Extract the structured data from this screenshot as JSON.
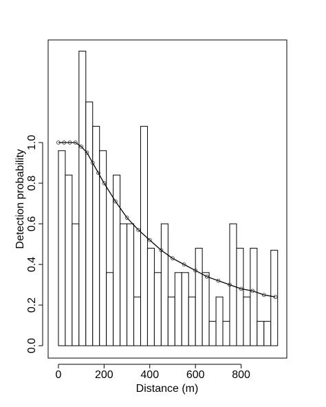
{
  "chart_data": {
    "type": "histogram",
    "xlabel": "Distance (m)",
    "ylabel": "Detection probability",
    "bins": [
      0,
      30,
      60,
      90,
      120,
      150,
      180,
      210,
      240,
      270,
      300,
      330,
      360,
      390,
      420,
      450,
      480,
      510,
      540,
      570,
      600,
      630,
      660,
      690,
      720,
      750,
      780,
      810,
      840,
      870,
      900,
      930,
      960
    ],
    "values": [
      0.96,
      0.84,
      0.6,
      1.45,
      1.2,
      1.08,
      0.96,
      0.36,
      0.84,
      0.6,
      0.6,
      0.24,
      1.08,
      0.48,
      0.36,
      0.6,
      0.24,
      0.36,
      0.36,
      0.24,
      0.48,
      0.36,
      0.12,
      0.24,
      0.12,
      0.6,
      0.48,
      0.24,
      0.48,
      0.12,
      0.12,
      0.47
    ],
    "curve": {
      "type": "line",
      "x": [
        0,
        25,
        50,
        75,
        100,
        125,
        150,
        175,
        200,
        250,
        300,
        350,
        400,
        450,
        500,
        550,
        600,
        650,
        700,
        750,
        800,
        850,
        900,
        950
      ],
      "y": [
        1.0,
        1.0,
        1.0,
        1.0,
        0.98,
        0.95,
        0.9,
        0.85,
        0.8,
        0.71,
        0.63,
        0.57,
        0.52,
        0.47,
        0.43,
        0.4,
        0.37,
        0.34,
        0.32,
        0.3,
        0.28,
        0.27,
        0.25,
        0.24
      ]
    },
    "xlim": [
      -45,
      1000
    ],
    "ylim": [
      -0.061,
      1.505
    ],
    "xticks": [
      0,
      200,
      400,
      600,
      800
    ],
    "yticks": [
      {
        "value": 0,
        "label": "0.0"
      },
      0.2,
      0.4,
      0.6,
      0.8,
      {
        "value": 1,
        "label": "1.0"
      }
    ]
  }
}
